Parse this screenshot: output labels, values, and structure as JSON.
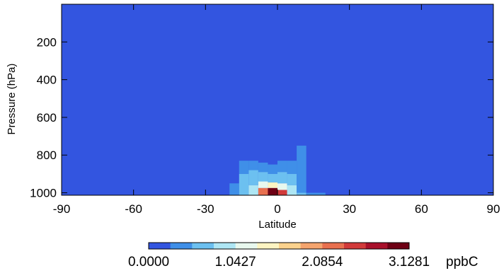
{
  "chart_data": {
    "type": "heatmap",
    "xlabel": "Latitude",
    "ylabel": "Pressure (hPa)",
    "xlim": [
      -90,
      90
    ],
    "ylim": [
      0,
      1013
    ],
    "y_inverted": true,
    "x_ticks": [
      -90,
      -60,
      -30,
      0,
      30,
      60,
      90
    ],
    "x_tick_labels": [
      "-90",
      "-60",
      "-30",
      "0",
      "30",
      "60",
      "90"
    ],
    "y_ticks": [
      200,
      400,
      600,
      800,
      1000
    ],
    "y_tick_labels": [
      "200",
      "400",
      "600",
      "800",
      "1000"
    ],
    "background_value": 0.0,
    "cells": [
      {
        "lat": [
          -20,
          -16
        ],
        "p": [
          950,
          1013
        ],
        "v": 0.35
      },
      {
        "lat": [
          -16,
          -12
        ],
        "p": [
          830,
          900
        ],
        "v": 0.35
      },
      {
        "lat": [
          -16,
          -12
        ],
        "p": [
          900,
          1013
        ],
        "v": 0.55
      },
      {
        "lat": [
          -12,
          -8
        ],
        "p": [
          830,
          880
        ],
        "v": 0.35
      },
      {
        "lat": [
          -12,
          -8
        ],
        "p": [
          880,
          960
        ],
        "v": 0.55
      },
      {
        "lat": [
          -12,
          -8
        ],
        "p": [
          960,
          1013
        ],
        "v": 0.95
      },
      {
        "lat": [
          -8,
          -4
        ],
        "p": [
          840,
          890
        ],
        "v": 0.35
      },
      {
        "lat": [
          -8,
          -4
        ],
        "p": [
          890,
          940
        ],
        "v": 0.55
      },
      {
        "lat": [
          -8,
          -4
        ],
        "p": [
          940,
          975
        ],
        "v": 1.05
      },
      {
        "lat": [
          -8,
          -4
        ],
        "p": [
          975,
          1013
        ],
        "v": 2.2
      },
      {
        "lat": [
          -4,
          0
        ],
        "p": [
          850,
          900
        ],
        "v": 0.35
      },
      {
        "lat": [
          -4,
          0
        ],
        "p": [
          900,
          945
        ],
        "v": 0.55
      },
      {
        "lat": [
          -4,
          0
        ],
        "p": [
          945,
          975
        ],
        "v": 1.35
      },
      {
        "lat": [
          -4,
          0
        ],
        "p": [
          975,
          1013
        ],
        "v": 3.0
      },
      {
        "lat": [
          0,
          4
        ],
        "p": [
          830,
          890
        ],
        "v": 0.35
      },
      {
        "lat": [
          0,
          4
        ],
        "p": [
          890,
          950
        ],
        "v": 0.55
      },
      {
        "lat": [
          0,
          4
        ],
        "p": [
          950,
          985
        ],
        "v": 1.2
      },
      {
        "lat": [
          0,
          4
        ],
        "p": [
          985,
          1013
        ],
        "v": 2.6
      },
      {
        "lat": [
          4,
          8
        ],
        "p": [
          830,
          900
        ],
        "v": 0.35
      },
      {
        "lat": [
          4,
          8
        ],
        "p": [
          900,
          960
        ],
        "v": 0.55
      },
      {
        "lat": [
          4,
          8
        ],
        "p": [
          960,
          1013
        ],
        "v": 0.85
      },
      {
        "lat": [
          8,
          12
        ],
        "p": [
          750,
          1000
        ],
        "v": 0.35
      },
      {
        "lat": [
          8,
          12
        ],
        "p": [
          1000,
          1013
        ],
        "v": 0.55
      },
      {
        "lat": [
          12,
          20
        ],
        "p": [
          1000,
          1013
        ],
        "v": 0.35
      }
    ],
    "colorbar": {
      "colors": [
        "#3355e0",
        "#3f8fe8",
        "#6cc0f0",
        "#aee6f4",
        "#e8f8ee",
        "#fdf4c2",
        "#fbd28d",
        "#f5a46e",
        "#e8704f",
        "#d13a3a",
        "#a8102a",
        "#6e0014"
      ],
      "tick_values": [
        0.0,
        1.0427,
        2.0854,
        3.1281
      ],
      "tick_labels": [
        "0.0000",
        "1.0427",
        "2.0854",
        "3.1281"
      ],
      "unit": "ppbC"
    }
  }
}
